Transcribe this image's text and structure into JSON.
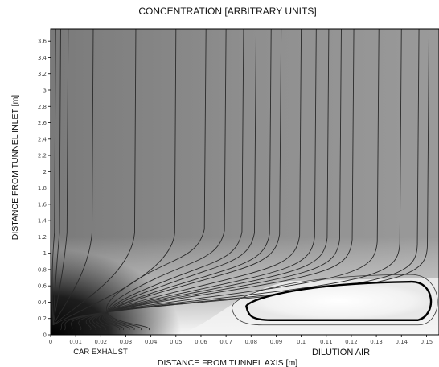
{
  "chart_data": {
    "type": "heatmap",
    "title": "CONCENTRATION [ARBITRARY UNITS]",
    "xlabel": "DISTANCE FROM TUNNEL AXIS [m]",
    "ylabel": "DISTANCE FROM TUNNEL INLET [m]",
    "xlim": [
      0,
      0.155
    ],
    "ylim": [
      0,
      3.75
    ],
    "x_ticks": [
      "0",
      "0.01",
      "0.02",
      "0.03",
      "0.04",
      "0.05",
      "0.06",
      "0.07",
      "0.08",
      "0.09",
      "0.1",
      "0.11",
      "0.12",
      "0.13",
      "0.14",
      "0.15"
    ],
    "y_ticks": [
      "0",
      "0.2",
      "0.4",
      "0.6",
      "0.8",
      "1",
      "1.2",
      "1.4",
      "1.6",
      "1.8",
      "2",
      "2.2",
      "2.4",
      "2.6",
      "2.8",
      "3",
      "3.2",
      "3.4",
      "3.6"
    ],
    "annotations": [
      {
        "text": "CAR EXHAUST",
        "x": 0.025
      },
      {
        "text": "DILUTION AIR",
        "x": 0.113
      }
    ],
    "colormap": {
      "high": "#000000",
      "mid": "#8c8c8c",
      "low": "#ffffff"
    },
    "contour_asymptotes_x": [
      0.002,
      0.004,
      0.007,
      0.017,
      0.034,
      0.05,
      0.062,
      0.07,
      0.077,
      0.082,
      0.088,
      0.092,
      0.1,
      0.106,
      0.111,
      0.116,
      0.121,
      0.131,
      0.14,
      0.147,
      0.151
    ],
    "closed_contour": {
      "x": [
        0.075,
        0.153
      ],
      "y": [
        0.18,
        0.65
      ]
    },
    "grid": false
  }
}
